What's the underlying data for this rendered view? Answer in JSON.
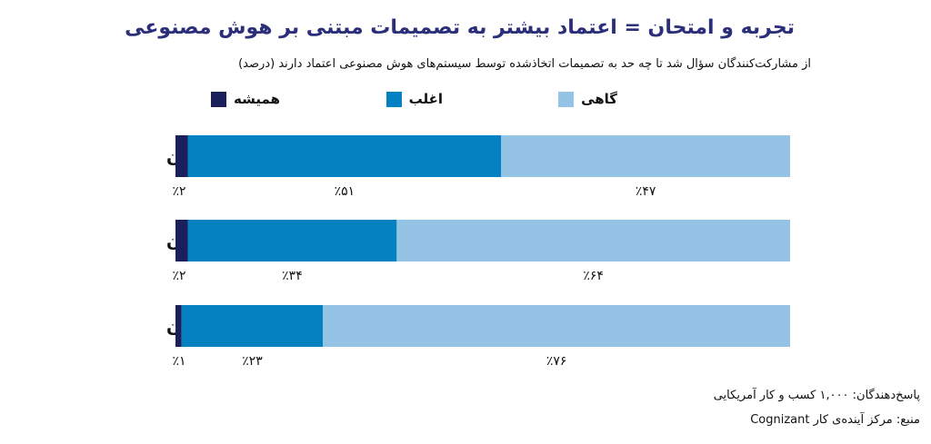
{
  "title": "تجربه و امتحان = اعتماد بیشتر به تصمیمات مبتنی بر هوش مصنوعی",
  "subtitle": "از مشارکت‌کنندگان سؤال شد تا چه حد به تصمیمات اتخاذشده توسط سیستم‌های هوش مصنوعی اعتماد دارند (درصد)",
  "legend": [
    {
      "label": "همیشه",
      "color": "#1b1f5c"
    },
    {
      "label": "اغلب",
      "color": "#0381c0"
    },
    {
      "label": "گاهی",
      "color": "#94c3e6"
    }
  ],
  "chart_data": {
    "type": "bar",
    "orientation": "horizontal",
    "stacked": true,
    "categories": [
      "سردمداران",
      "مجریان",
      "مبتدیان"
    ],
    "series": [
      {
        "name": "همیشه",
        "values": [
          2,
          2,
          1
        ],
        "labels": [
          "٪۲",
          "٪۲",
          "٪۱"
        ],
        "color": "#1b1f5c"
      },
      {
        "name": "اغلب",
        "values": [
          51,
          34,
          23
        ],
        "labels": [
          "٪۵۱",
          "٪۳۴",
          "٪۲۳"
        ],
        "color": "#0381c0"
      },
      {
        "name": "گاهی",
        "values": [
          47,
          64,
          76
        ],
        "labels": [
          "٪۴۷",
          "٪۶۴",
          "٪۷۶"
        ],
        "color": "#94c3e6"
      }
    ],
    "xlim": [
      0,
      100
    ],
    "unit": "percent",
    "legend_position": "top"
  },
  "footer": {
    "respondents": "پاسخ‌دهندگان: ۱,۰۰۰ کسب و کار آمریکایی",
    "source": "منبع: مرکز آینده‌ی کار Cognizant"
  }
}
